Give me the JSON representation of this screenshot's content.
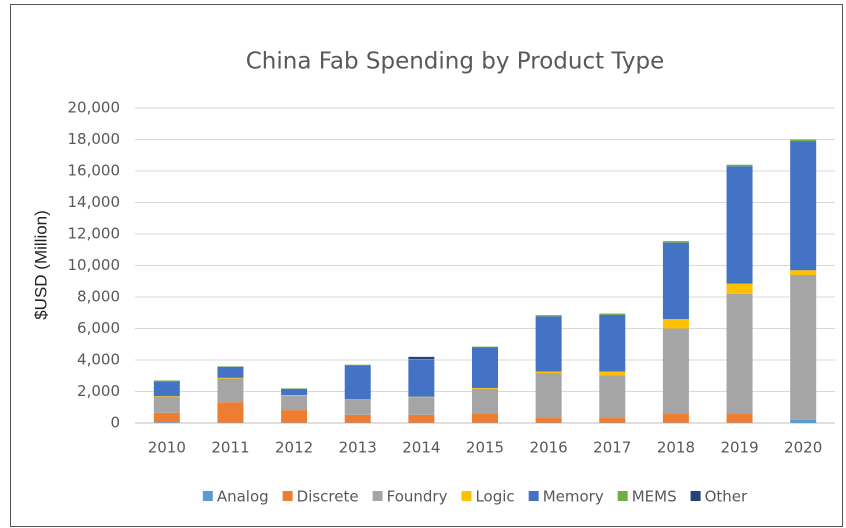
{
  "chart_data": {
    "type": "stacked_bar",
    "title": "China Fab Spending by Product Type",
    "y_label": "$USD (Million)",
    "categories": [
      "2010",
      "2011",
      "2012",
      "2013",
      "2014",
      "2015",
      "2016",
      "2017",
      "2018",
      "2019",
      "2020"
    ],
    "series": [
      {
        "name": "Analog",
        "color": "#5b9bd5",
        "values": [
          50,
          20,
          20,
          20,
          20,
          20,
          20,
          20,
          20,
          20,
          200
        ]
      },
      {
        "name": "Discrete",
        "color": "#ed7d31",
        "values": [
          600,
          1300,
          800,
          500,
          500,
          600,
          300,
          300,
          550,
          550,
          20
        ]
      },
      {
        "name": "Foundry",
        "color": "#a5a5a5",
        "values": [
          1000,
          1500,
          900,
          950,
          1100,
          1550,
          2850,
          2700,
          5430,
          7630,
          9180
        ]
      },
      {
        "name": "Logic",
        "color": "#ffc000",
        "values": [
          50,
          50,
          50,
          30,
          50,
          50,
          100,
          250,
          600,
          650,
          300
        ]
      },
      {
        "name": "Memory",
        "color": "#4472c4",
        "values": [
          950,
          700,
          400,
          2150,
          2330,
          2600,
          3500,
          3600,
          4850,
          7450,
          8200
        ]
      },
      {
        "name": "MEMS",
        "color": "#70ad47",
        "values": [
          50,
          30,
          30,
          50,
          50,
          30,
          80,
          80,
          100,
          100,
          100
        ]
      },
      {
        "name": "Other",
        "color": "#264478",
        "values": [
          0,
          0,
          0,
          0,
          150,
          0,
          0,
          0,
          0,
          0,
          0
        ]
      }
    ],
    "ylim": [
      0,
      20000
    ],
    "yticks": [
      0,
      {
        "value": 2000,
        "label": "2,000"
      },
      {
        "value": 4000,
        "label": "4,000"
      },
      {
        "value": 6000,
        "label": "6,000"
      },
      {
        "value": 8000,
        "label": "8,000"
      },
      {
        "value": 10000,
        "label": "10,000"
      },
      {
        "value": 12000,
        "label": "12,000"
      },
      {
        "value": 14000,
        "label": "14,000"
      },
      {
        "value": 16000,
        "label": "16,000"
      },
      {
        "value": 18000,
        "label": "18,000"
      },
      {
        "value": 20000,
        "label": "20,000"
      }
    ],
    "grid": true,
    "legend": "bottom"
  }
}
